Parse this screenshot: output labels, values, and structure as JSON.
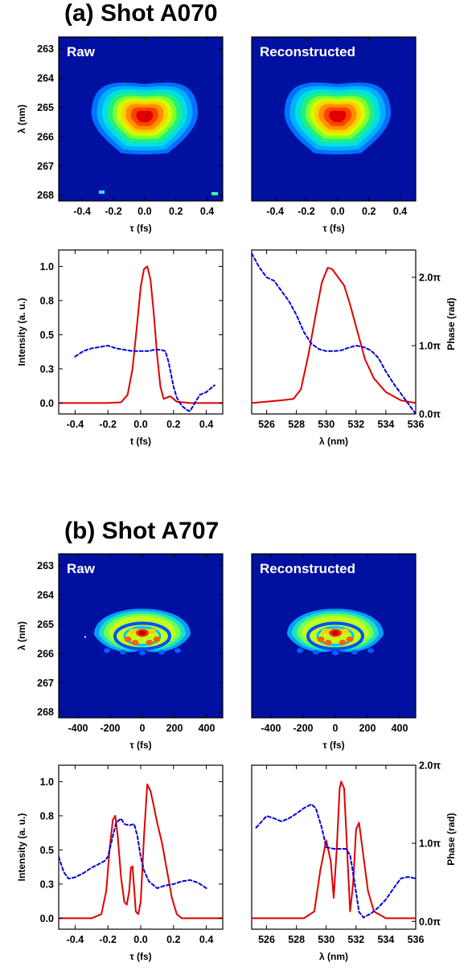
{
  "figure": {
    "sections": [
      {
        "title": "(a) Shot A070",
        "shot_type": "short",
        "colormap_background": "#0010a0",
        "heatmaps": [
          {
            "label": "Raw",
            "noisy": true
          },
          {
            "label": "Reconstructed",
            "noisy": false
          }
        ]
      },
      {
        "title": "(b) Shot A707",
        "shot_type": "long",
        "colormap_background": "#0010a0",
        "heatmaps": [
          {
            "label": "Raw",
            "noisy": true
          },
          {
            "label": "Reconstructed",
            "noisy": false
          }
        ]
      }
    ]
  },
  "chart_data": [
    {
      "id": "a_raw",
      "type": "heatmap",
      "label": "Raw",
      "xlabel": "τ (fs)",
      "ylabel": "λ (nm)",
      "xlim": [
        -0.55,
        0.5
      ],
      "ylim": [
        262.6,
        268.2
      ],
      "y_inverted": true,
      "xticks": [
        -0.4,
        -0.2,
        0.0,
        0.2,
        0.4
      ],
      "xticklabels": [
        "-0.4",
        "-0.2",
        "0.0",
        "0.2",
        "0.4"
      ],
      "yticks": [
        263,
        264,
        265,
        266,
        267,
        268
      ],
      "yticklabels": [
        "263",
        "264",
        "265",
        "266",
        "267",
        "268"
      ],
      "peak": {
        "x": 0.0,
        "y": 265.3
      }
    },
    {
      "id": "a_recon",
      "type": "heatmap",
      "label": "Reconstructed",
      "xlabel": "τ (fs)",
      "xlim": [
        -0.55,
        0.5
      ],
      "ylim": [
        262.6,
        268.2
      ],
      "y_inverted": true,
      "xticks": [
        -0.4,
        -0.2,
        0.0,
        0.2,
        0.4
      ],
      "xticklabels": [
        "-0.4",
        "-0.2",
        "0.0",
        "0.2",
        "0.4"
      ],
      "peak": {
        "x": 0.0,
        "y": 265.3
      }
    },
    {
      "id": "a_time",
      "type": "line",
      "xlabel": "t (fs)",
      "ylabel": "Intensity (a. u.)",
      "xlim": [
        -0.5,
        0.5
      ],
      "ylim": [
        -0.08,
        1.12
      ],
      "xticks": [
        -0.4,
        -0.2,
        0.0,
        0.2,
        0.4
      ],
      "xticklabels": [
        "-0.4",
        "-0.2",
        "0.0",
        "0.2",
        "0.4"
      ],
      "yticks": [
        0.0,
        0.25,
        0.5,
        0.75,
        1.0
      ],
      "yticklabels": [
        "0.0",
        "0.3",
        "0.5",
        "0.8",
        "1.0"
      ],
      "series": [
        {
          "color": "#e00000",
          "dash": false,
          "x": [
            -0.5,
            -0.2,
            -0.12,
            -0.08,
            -0.05,
            -0.02,
            0.0,
            0.02,
            0.04,
            0.06,
            0.08,
            0.1,
            0.12,
            0.14,
            0.16,
            0.18,
            0.2,
            0.22,
            0.3,
            0.5
          ],
          "y": [
            0.0,
            0.0,
            0.005,
            0.06,
            0.25,
            0.6,
            0.85,
            0.98,
            1.0,
            0.9,
            0.65,
            0.35,
            0.12,
            0.03,
            0.04,
            0.05,
            0.03,
            0.01,
            0.0,
            0.0
          ]
        },
        {
          "color": "#0000e0",
          "dash": true,
          "x": [
            -0.4,
            -0.35,
            -0.3,
            -0.25,
            -0.2,
            -0.15,
            -0.1,
            -0.05,
            0.0,
            0.05,
            0.08,
            0.1,
            0.12,
            0.15,
            0.17,
            0.2,
            0.22,
            0.25,
            0.28,
            0.3,
            0.33,
            0.36,
            0.4,
            0.45
          ],
          "y": [
            0.34,
            0.38,
            0.4,
            0.41,
            0.42,
            0.4,
            0.39,
            0.38,
            0.38,
            0.38,
            0.39,
            0.39,
            0.39,
            0.38,
            0.3,
            0.12,
            0.04,
            -0.02,
            -0.05,
            -0.06,
            0.0,
            0.06,
            0.08,
            0.13
          ]
        }
      ]
    },
    {
      "id": "a_spec",
      "type": "line",
      "xlabel": "λ (nm)",
      "y2label": "Phase (rad)",
      "xlim": [
        525,
        536
      ],
      "ylim": [
        -0.08,
        1.12
      ],
      "xticks": [
        526,
        528,
        530,
        532,
        534,
        536
      ],
      "xticklabels": [
        "526",
        "528",
        "530",
        "532",
        "534",
        "536"
      ],
      "y2ticks": [
        0.0,
        1.0,
        2.0
      ],
      "y2ticklabels": [
        "0.0π",
        "1.0π",
        "2.0π"
      ],
      "y2lim": [
        0.0,
        2.4
      ],
      "series": [
        {
          "color": "#e00000",
          "dash": false,
          "x": [
            525,
            527,
            527.8,
            528.3,
            528.8,
            529.3,
            529.7,
            530.1,
            530.4,
            530.8,
            531.2,
            531.6,
            532.1,
            532.6,
            533.2,
            534,
            535,
            536
          ],
          "y": [
            0.0,
            0.02,
            0.03,
            0.1,
            0.35,
            0.65,
            0.88,
            0.99,
            0.98,
            0.92,
            0.86,
            0.72,
            0.52,
            0.32,
            0.18,
            0.08,
            0.02,
            0.0
          ]
        },
        {
          "color": "#0000e0",
          "dash": true,
          "x": [
            525,
            525.5,
            526,
            526.5,
            527,
            527.5,
            528,
            528.5,
            529,
            529.5,
            530,
            530.5,
            531,
            531.5,
            532,
            532.5,
            533,
            533.5,
            534,
            534.5,
            535,
            535.5,
            536
          ],
          "y": [
            2.35,
            2.15,
            2.0,
            1.95,
            1.8,
            1.65,
            1.45,
            1.2,
            1.03,
            0.95,
            0.92,
            0.92,
            0.93,
            0.97,
            1.0,
            0.98,
            0.93,
            0.82,
            0.62,
            0.45,
            0.3,
            0.15,
            0.0
          ]
        }
      ]
    },
    {
      "id": "b_raw",
      "type": "heatmap",
      "label": "Raw",
      "xlabel": "τ (fs)",
      "ylabel": "λ (nm)",
      "xlim": [
        -520,
        500
      ],
      "ylim": [
        262.6,
        268.2
      ],
      "y_inverted": true,
      "xticks": [
        -400,
        -200,
        0,
        200,
        400
      ],
      "xticklabels": [
        "-400",
        "-200",
        "0",
        "200",
        "400"
      ],
      "yticks": [
        263,
        264,
        265,
        266,
        267,
        268
      ],
      "yticklabels": [
        "263",
        "264",
        "265",
        "266",
        "267",
        "268"
      ],
      "peak": {
        "x": 0,
        "y": 265.3
      }
    },
    {
      "id": "b_recon",
      "type": "heatmap",
      "label": "Reconstructed",
      "xlabel": "τ (fs)",
      "xlim": [
        -520,
        500
      ],
      "ylim": [
        262.6,
        268.2
      ],
      "y_inverted": true,
      "xticks": [
        -400,
        -200,
        0,
        200,
        400
      ],
      "xticklabels": [
        "-400",
        "-200",
        "0",
        "200",
        "400"
      ],
      "peak": {
        "x": 0,
        "y": 265.3
      }
    },
    {
      "id": "b_time",
      "type": "line",
      "xlabel": "τ (fs)",
      "ylabel": "Intensity (a. u.)",
      "xlim": [
        -0.5,
        0.5
      ],
      "ylim": [
        -0.08,
        1.12
      ],
      "xticks": [
        -0.4,
        -0.2,
        0.0,
        0.2,
        0.4
      ],
      "xticklabels": [
        "-0.4",
        "-0.2",
        "0.0",
        "0.2",
        "0.4"
      ],
      "yticks": [
        0.0,
        0.25,
        0.5,
        0.75,
        1.0
      ],
      "yticklabels": [
        "0.0",
        "0.3",
        "0.5",
        "0.8",
        "1.0"
      ],
      "series": [
        {
          "color": "#e00000",
          "dash": false,
          "x": [
            -0.5,
            -0.3,
            -0.24,
            -0.21,
            -0.19,
            -0.17,
            -0.155,
            -0.14,
            -0.12,
            -0.1,
            -0.085,
            -0.07,
            -0.06,
            -0.05,
            -0.04,
            -0.03,
            -0.015,
            0.0,
            0.02,
            0.04,
            0.06,
            0.08,
            0.1,
            0.13,
            0.16,
            0.19,
            0.22,
            0.25,
            0.5
          ],
          "y": [
            0.0,
            0.0,
            0.03,
            0.2,
            0.5,
            0.72,
            0.75,
            0.6,
            0.3,
            0.12,
            0.1,
            0.2,
            0.37,
            0.38,
            0.22,
            0.05,
            0.03,
            0.12,
            0.6,
            0.98,
            0.93,
            0.82,
            0.7,
            0.55,
            0.35,
            0.15,
            0.03,
            0.0,
            0.0
          ]
        },
        {
          "color": "#0000e0",
          "dash": true,
          "x": [
            -0.5,
            -0.47,
            -0.44,
            -0.4,
            -0.35,
            -0.3,
            -0.25,
            -0.22,
            -0.2,
            -0.18,
            -0.15,
            -0.12,
            -0.1,
            -0.07,
            -0.04,
            -0.02,
            0.0,
            0.02,
            0.05,
            0.1,
            0.15,
            0.2,
            0.25,
            0.3,
            0.35,
            0.4
          ],
          "y": [
            0.45,
            0.34,
            0.29,
            0.3,
            0.33,
            0.37,
            0.4,
            0.42,
            0.45,
            0.55,
            0.7,
            0.73,
            0.69,
            0.68,
            0.69,
            0.6,
            0.45,
            0.35,
            0.27,
            0.22,
            0.24,
            0.25,
            0.27,
            0.28,
            0.26,
            0.22
          ]
        }
      ]
    },
    {
      "id": "b_spec",
      "type": "line",
      "xlabel": "λ (nm)",
      "y2label": "Phase (rad)",
      "xlim": [
        525,
        536
      ],
      "ylim": [
        -0.08,
        1.12
      ],
      "xticks": [
        526,
        528,
        530,
        532,
        534,
        536
      ],
      "xticklabels": [
        "526",
        "528",
        "530",
        "532",
        "534",
        "536"
      ],
      "y2ticks": [
        0.0,
        1.0,
        2.0
      ],
      "y2ticklabels": [
        "0.0π",
        "1.0π",
        "2.0π"
      ],
      "y2lim": [
        -0.1,
        2.0
      ],
      "series": [
        {
          "color": "#e00000",
          "dash": false,
          "x": [
            525,
            528.5,
            529.2,
            529.6,
            530.0,
            530.3,
            530.5,
            530.7,
            530.9,
            531.0,
            531.2,
            531.4,
            531.6,
            531.8,
            532.0,
            532.2,
            532.5,
            532.8,
            533.2,
            534,
            536
          ],
          "y": [
            0.0,
            0.0,
            0.05,
            0.35,
            0.57,
            0.42,
            0.15,
            0.5,
            0.95,
            1.0,
            0.95,
            0.5,
            0.05,
            0.25,
            0.65,
            0.7,
            0.45,
            0.2,
            0.05,
            0.0,
            0.0
          ]
        },
        {
          "color": "#0000e0",
          "dash": true,
          "x": [
            525.3,
            526,
            526.5,
            527,
            527.5,
            528,
            528.5,
            529,
            529.3,
            529.7,
            530,
            530.5,
            531,
            531.3,
            531.6,
            531.9,
            532.2,
            532.5,
            533,
            533.5,
            534,
            534.5,
            535,
            535.5,
            536
          ],
          "y": [
            1.2,
            1.35,
            1.32,
            1.28,
            1.32,
            1.38,
            1.45,
            1.5,
            1.45,
            1.2,
            0.95,
            0.93,
            0.93,
            0.93,
            0.85,
            0.5,
            0.12,
            0.05,
            0.1,
            0.18,
            0.28,
            0.42,
            0.55,
            0.57,
            0.55
          ]
        }
      ]
    }
  ]
}
